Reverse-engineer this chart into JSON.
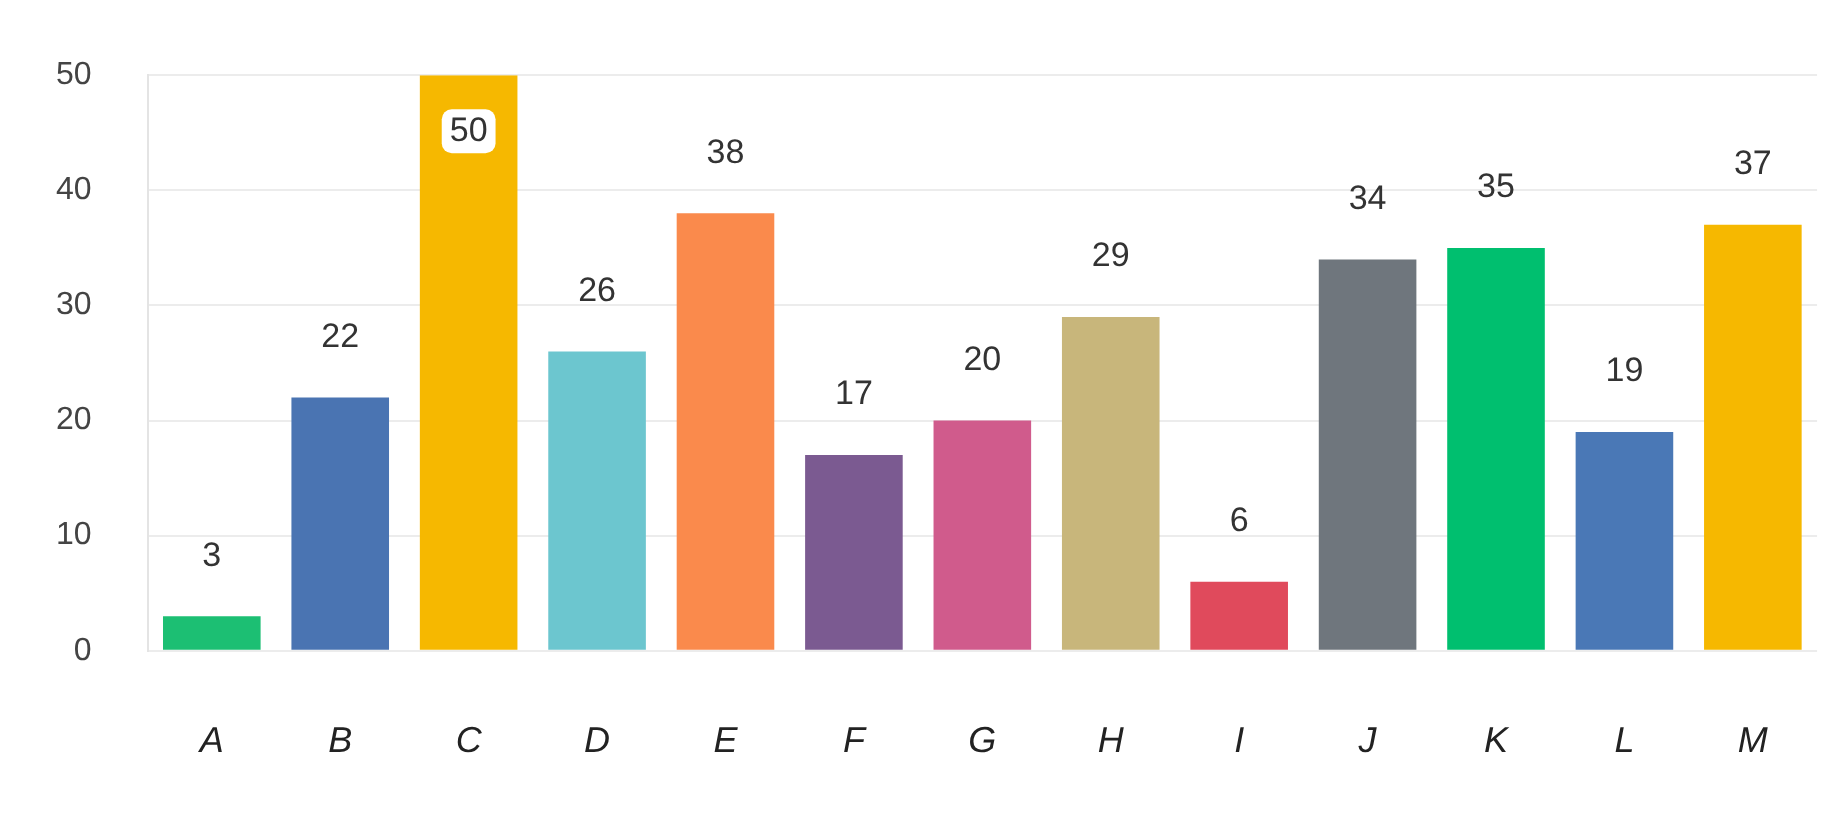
{
  "chart_data": {
    "type": "bar",
    "categories": [
      "A",
      "B",
      "C",
      "D",
      "E",
      "F",
      "G",
      "H",
      "I",
      "J",
      "K",
      "L",
      "M"
    ],
    "values": [
      3,
      22,
      50,
      26,
      38,
      17,
      20,
      29,
      6,
      34,
      35,
      19,
      37
    ],
    "colors": [
      "#1cbf73",
      "#4a74b2",
      "#f6b800",
      "#6cc6cf",
      "#fa8a4c",
      "#7b5a91",
      "#d05b8c",
      "#c8b67b",
      "#e04a5c",
      "#6f767d",
      "#00bf6f",
      "#4a78b6",
      "#f6b800"
    ],
    "ylim": [
      0,
      50
    ],
    "yticks": [
      0,
      10,
      20,
      30,
      40,
      50
    ],
    "grid": "y",
    "data_labels": true,
    "legend": false
  }
}
